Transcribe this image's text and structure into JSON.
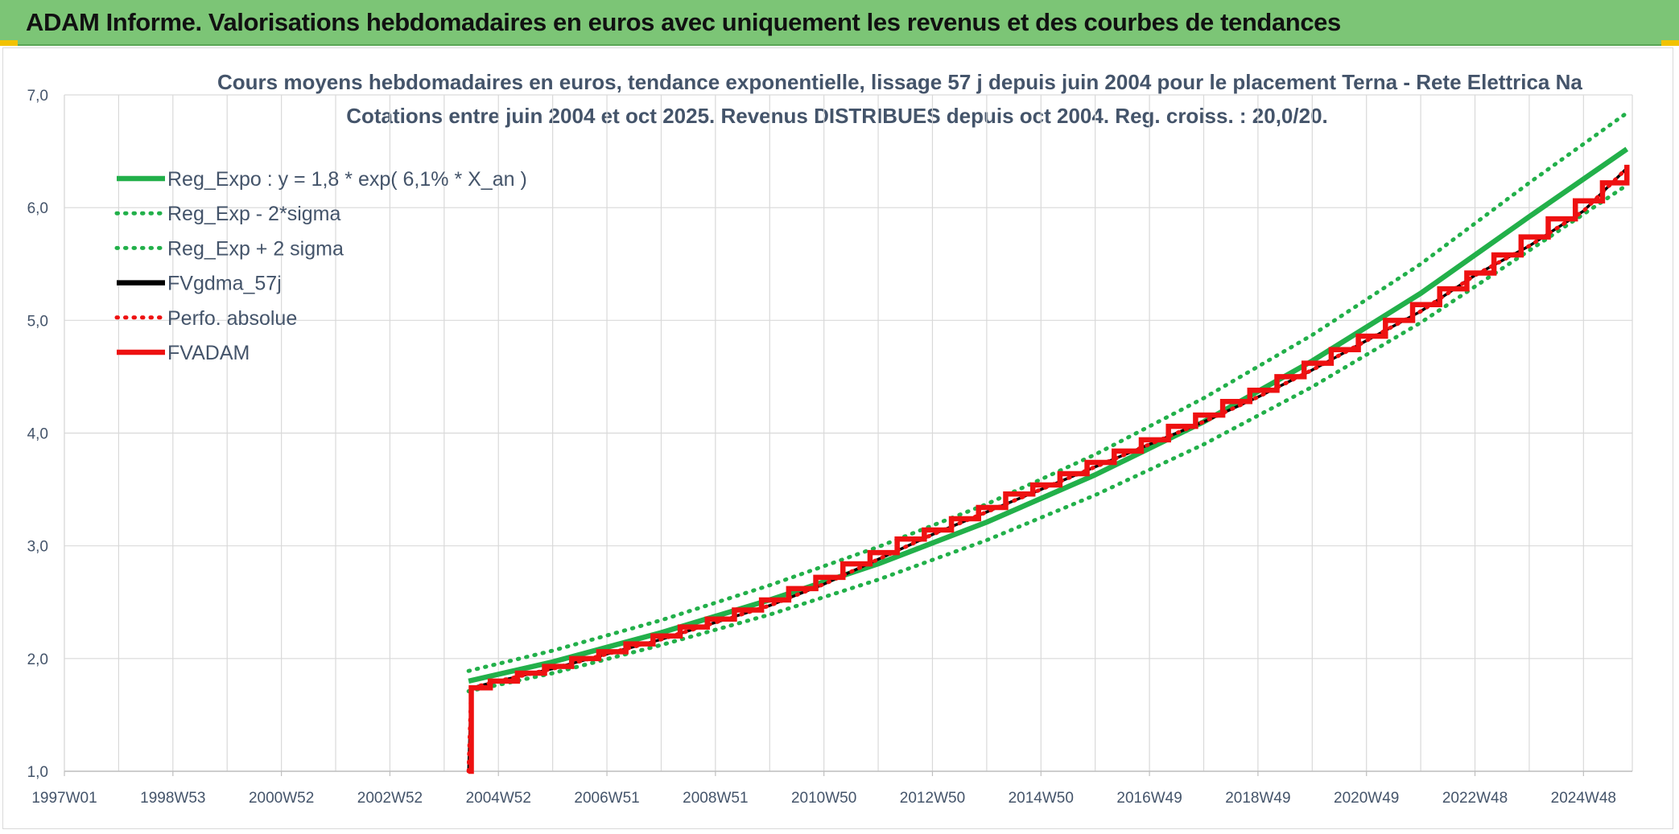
{
  "header": {
    "title": "ADAM Informe. Valorisations hebdomadaires en euros avec uniquement les revenus et des courbes de tendances"
  },
  "colors": {
    "banner": "#7cc576",
    "reg_expo": "#22b04a",
    "fvgdma": "#000000",
    "fvadam": "#ee1111",
    "perfo": "#ee1111",
    "text": "#44546a",
    "grid": "#d9d9d9"
  },
  "chart_data": {
    "type": "line",
    "title": "Cours moyens hebdomadaires en euros, tendance exponentielle, lissage 57 j depuis juin 2004 pour le placement Terna - Rete Elettrica Na",
    "subtitle": "Cotations entre juin 2004 et oct 2025. Revenus DISTRIBUES depuis oct 2004. Reg. croiss. : 20,0/20.",
    "xlabel": "",
    "ylabel": "",
    "ylim": [
      1.0,
      7.0
    ],
    "xlim": [
      1997.0,
      2025.9
    ],
    "y_ticks": [
      "1,0",
      "2,0",
      "3,0",
      "4,0",
      "5,0",
      "6,0",
      "7,0"
    ],
    "x_ticks": [
      {
        "label": "1997W01",
        "x": 1997.0
      },
      {
        "label": "1998W53",
        "x": 1999.0
      },
      {
        "label": "2000W52",
        "x": 2001.0
      },
      {
        "label": "2002W52",
        "x": 2003.0
      },
      {
        "label": "2004W52",
        "x": 2005.0
      },
      {
        "label": "2006W51",
        "x": 2007.0
      },
      {
        "label": "2008W51",
        "x": 2009.0
      },
      {
        "label": "2010W50",
        "x": 2011.0
      },
      {
        "label": "2012W50",
        "x": 2013.0
      },
      {
        "label": "2014W50",
        "x": 2015.0
      },
      {
        "label": "2016W49",
        "x": 2017.0
      },
      {
        "label": "2018W49",
        "x": 2019.0
      },
      {
        "label": "2020W49",
        "x": 2021.0
      },
      {
        "label": "2022W48",
        "x": 2023.0
      },
      {
        "label": "2024W48",
        "x": 2025.0
      }
    ],
    "grid": true,
    "legend_position": "top-left",
    "series": [
      {
        "name": "Reg_Expo : y = 1,8 * exp( 6,1% *  X_an )",
        "style": "solid",
        "color": "#22b04a",
        "x": [
          2004.45,
          2006.0,
          2008.0,
          2010.0,
          2012.0,
          2014.0,
          2016.0,
          2018.0,
          2020.0,
          2022.0,
          2024.0,
          2025.8
        ],
        "y": [
          1.8,
          1.97,
          2.23,
          2.52,
          2.84,
          3.21,
          3.63,
          4.1,
          4.64,
          5.24,
          5.92,
          6.52
        ]
      },
      {
        "name": "Reg_Exp - 2*sigma",
        "style": "dotted",
        "color": "#22b04a",
        "x": [
          2004.45,
          2006.0,
          2008.0,
          2010.0,
          2012.0,
          2014.0,
          2016.0,
          2018.0,
          2020.0,
          2022.0,
          2024.0,
          2025.8
        ],
        "y": [
          1.71,
          1.87,
          2.12,
          2.39,
          2.7,
          3.05,
          3.45,
          3.9,
          4.41,
          4.98,
          5.62,
          6.2
        ]
      },
      {
        "name": "Reg_Exp + 2 sigma",
        "style": "dotted",
        "color": "#22b04a",
        "x": [
          2004.45,
          2006.0,
          2008.0,
          2010.0,
          2012.0,
          2014.0,
          2016.0,
          2018.0,
          2020.0,
          2022.0,
          2024.0,
          2025.8
        ],
        "y": [
          1.89,
          2.07,
          2.34,
          2.65,
          2.99,
          3.37,
          3.81,
          4.31,
          4.87,
          5.5,
          6.22,
          6.84
        ]
      },
      {
        "name": "FVgdma_57j",
        "style": "solid",
        "color": "#000000",
        "x": [
          2004.45,
          2004.5,
          2005.0,
          2006.0,
          2007.0,
          2008.0,
          2009.0,
          2010.0,
          2011.0,
          2012.0,
          2013.0,
          2014.0,
          2015.0,
          2016.0,
          2017.0,
          2018.0,
          2019.0,
          2020.0,
          2021.0,
          2022.0,
          2023.0,
          2024.0,
          2025.0,
          2025.8
        ],
        "y": [
          1.0,
          1.74,
          1.8,
          1.91,
          2.04,
          2.17,
          2.32,
          2.47,
          2.66,
          2.88,
          3.1,
          3.3,
          3.5,
          3.7,
          3.9,
          4.1,
          4.32,
          4.56,
          4.82,
          5.08,
          5.4,
          5.66,
          5.97,
          6.35
        ]
      },
      {
        "name": "Perfo. absolue",
        "style": "dotted",
        "color": "#ee1111",
        "x": [
          2004.45,
          2004.5,
          2005.0,
          2006.0,
          2007.0,
          2008.0,
          2009.0,
          2010.0,
          2011.0,
          2012.0,
          2013.0,
          2014.0,
          2015.0,
          2016.0,
          2017.0,
          2018.0,
          2019.0,
          2020.0,
          2021.0,
          2022.0,
          2023.0,
          2024.0,
          2025.0,
          2025.8
        ],
        "y": [
          1.0,
          1.74,
          1.8,
          1.91,
          2.04,
          2.17,
          2.32,
          2.47,
          2.66,
          2.88,
          3.1,
          3.3,
          3.5,
          3.7,
          3.9,
          4.1,
          4.32,
          4.56,
          4.82,
          5.08,
          5.4,
          5.66,
          5.97,
          6.35
        ]
      },
      {
        "name": "FVADAM",
        "style": "step",
        "color": "#ee1111",
        "x": [
          2004.45,
          2004.5,
          2004.85,
          2005.35,
          2005.85,
          2006.35,
          2006.85,
          2007.35,
          2007.85,
          2008.35,
          2008.85,
          2009.35,
          2009.85,
          2010.35,
          2010.85,
          2011.35,
          2011.85,
          2012.35,
          2012.85,
          2013.35,
          2013.85,
          2014.35,
          2014.85,
          2015.35,
          2015.85,
          2016.35,
          2016.85,
          2017.35,
          2017.85,
          2018.35,
          2018.85,
          2019.35,
          2019.85,
          2020.35,
          2020.85,
          2021.35,
          2021.85,
          2022.35,
          2022.85,
          2023.35,
          2023.85,
          2024.35,
          2024.85,
          2025.35,
          2025.8
        ],
        "y": [
          1.0,
          1.74,
          1.8,
          1.87,
          1.93,
          2.0,
          2.06,
          2.13,
          2.2,
          2.28,
          2.35,
          2.43,
          2.52,
          2.62,
          2.72,
          2.84,
          2.94,
          3.06,
          3.14,
          3.24,
          3.34,
          3.46,
          3.54,
          3.64,
          3.74,
          3.84,
          3.94,
          4.06,
          4.16,
          4.28,
          4.38,
          4.5,
          4.62,
          4.74,
          4.86,
          5.0,
          5.14,
          5.28,
          5.42,
          5.58,
          5.74,
          5.9,
          6.06,
          6.22,
          6.38
        ]
      }
    ]
  }
}
